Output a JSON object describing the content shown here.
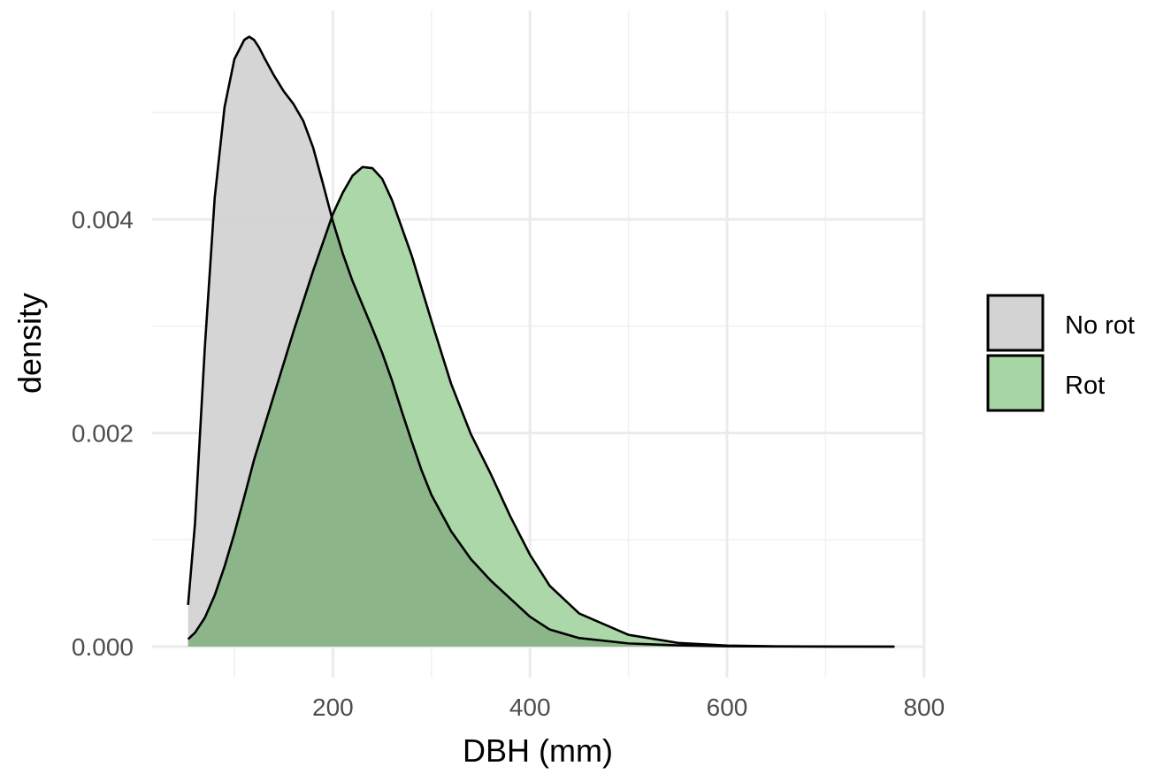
{
  "chart_data": {
    "type": "area",
    "title": "",
    "xlabel": "DBH (mm)",
    "ylabel": "density",
    "xlim": [
      50,
      770
    ],
    "ylim": [
      0,
      0.0058
    ],
    "grid": true,
    "legend_position": "right",
    "x_major_ticks": [
      200,
      400,
      600,
      800
    ],
    "x_minor_ticks": [
      100,
      300,
      500,
      700
    ],
    "x_tick_labels": [
      "200",
      "400",
      "600",
      "800"
    ],
    "y_major_ticks": [
      0,
      0.002,
      0.004
    ],
    "y_minor_ticks": [
      0.001,
      0.003,
      0.005
    ],
    "y_tick_labels": [
      "0.000",
      "0.002",
      "0.004"
    ],
    "series": [
      {
        "name": "No rot",
        "color": "#d3d3d3",
        "x": [
          53,
          60,
          70,
          80,
          90,
          100,
          110,
          115,
          120,
          125,
          130,
          140,
          150,
          160,
          170,
          180,
          190,
          200,
          210,
          220,
          230,
          240,
          250,
          260,
          270,
          280,
          290,
          300,
          320,
          340,
          360,
          380,
          400,
          420,
          450,
          500,
          550,
          600,
          650,
          700,
          770
        ],
        "y": [
          0.00039,
          0.00115,
          0.0028,
          0.0042,
          0.00505,
          0.0055,
          0.00568,
          0.00571,
          0.00568,
          0.00561,
          0.00552,
          0.00535,
          0.0052,
          0.00508,
          0.00492,
          0.00467,
          0.00433,
          0.00398,
          0.00368,
          0.00342,
          0.0032,
          0.00298,
          0.00275,
          0.00249,
          0.0022,
          0.00192,
          0.00165,
          0.00142,
          0.00108,
          0.00082,
          0.00062,
          0.00045,
          0.00028,
          0.00016,
          8e-05,
          3e-05,
          1.2e-05,
          4e-06,
          1.5e-06,
          5e-07,
          0.0
        ]
      },
      {
        "name": "Rot",
        "color": "#a8d5a4",
        "x": [
          53,
          60,
          70,
          80,
          90,
          100,
          110,
          120,
          140,
          160,
          180,
          200,
          210,
          220,
          230,
          240,
          250,
          260,
          280,
          300,
          320,
          340,
          360,
          380,
          400,
          420,
          450,
          500,
          550,
          600,
          650,
          700,
          770
        ],
        "y": [
          7e-05,
          0.00013,
          0.00027,
          0.00048,
          0.00075,
          0.00106,
          0.0014,
          0.00175,
          0.00235,
          0.00295,
          0.00352,
          0.00405,
          0.00425,
          0.00441,
          0.00449,
          0.00448,
          0.00438,
          0.00418,
          0.00366,
          0.00305,
          0.00246,
          0.00199,
          0.00162,
          0.00122,
          0.00086,
          0.00057,
          0.00031,
          0.00011,
          3.5e-05,
          1e-05,
          3e-06,
          1e-06,
          0.0
        ]
      }
    ]
  }
}
